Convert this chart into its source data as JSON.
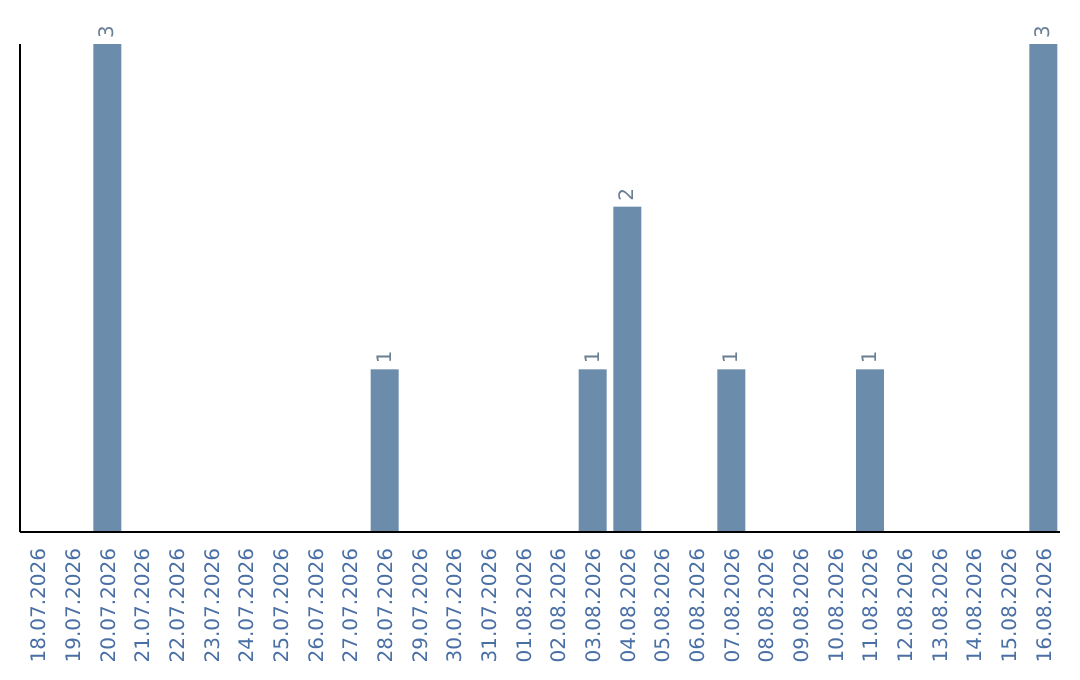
{
  "chart_data": {
    "type": "bar",
    "categories": [
      "18.07.2026",
      "19.07.2026",
      "20.07.2026",
      "21.07.2026",
      "22.07.2026",
      "23.07.2026",
      "24.07.2026",
      "25.07.2026",
      "26.07.2026",
      "27.07.2026",
      "28.07.2026",
      "29.07.2026",
      "30.07.2026",
      "31.07.2026",
      "01.08.2026",
      "02.08.2026",
      "03.08.2026",
      "04.08.2026",
      "05.08.2026",
      "06.08.2026",
      "07.08.2026",
      "08.08.2026",
      "09.08.2026",
      "10.08.2026",
      "11.08.2026",
      "12.08.2026",
      "13.08.2026",
      "14.08.2026",
      "15.08.2026",
      "16.08.2026"
    ],
    "values": [
      0,
      0,
      3,
      0,
      0,
      0,
      0,
      0,
      0,
      0,
      1,
      0,
      0,
      0,
      0,
      0,
      1,
      2,
      0,
      0,
      1,
      0,
      0,
      0,
      1,
      0,
      0,
      0,
      0,
      3
    ],
    "value_labels": [
      null,
      null,
      "3",
      null,
      null,
      null,
      null,
      null,
      null,
      null,
      "1",
      null,
      null,
      null,
      null,
      null,
      "1",
      "2",
      null,
      null,
      "1",
      null,
      null,
      null,
      "1",
      null,
      null,
      null,
      null,
      "3"
    ],
    "color": "#6b8cab",
    "tick_labels": "x",
    "grid": false,
    "legend": false
  }
}
